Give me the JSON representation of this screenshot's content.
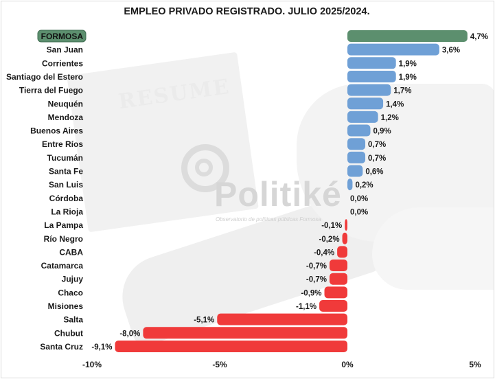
{
  "title": "EMPLEO PRIVADO REGISTRADO. JULIO 2025/2024.",
  "watermark": {
    "brand": "Politiké",
    "tagline": "Observatorio de políticas públicas Formosa",
    "background_text": "RESUME"
  },
  "colors": {
    "highlight": "#5c8f6e",
    "positive": "#6fa0d6",
    "negative": "#f03a3a",
    "highlight_label_bg": "#5c8f6e"
  },
  "chart_data": {
    "type": "bar",
    "orientation": "horizontal",
    "categories": [
      "FORMOSA",
      "San Juan",
      "Corrientes",
      "Santiago del Estero",
      "Tierra del Fuego",
      "Neuquén",
      "Mendoza",
      "Buenos Aires",
      "Entre Ríos",
      "Tucumán",
      "Santa Fe",
      "San Luis",
      "Córdoba",
      "La Rioja",
      "La Pampa",
      "Río Negro",
      "CABA",
      "Catamarca",
      "Jujuy",
      "Chaco",
      "Misiones",
      "Salta",
      "Chubut",
      "Santa Cruz"
    ],
    "values": [
      4.7,
      3.6,
      1.9,
      1.9,
      1.7,
      1.4,
      1.2,
      0.9,
      0.7,
      0.7,
      0.6,
      0.2,
      0.0,
      0.0,
      -0.1,
      -0.2,
      -0.4,
      -0.7,
      -0.7,
      -0.9,
      -1.1,
      -5.1,
      -8.0,
      -9.1
    ],
    "value_labels": [
      "4,7%",
      "3,6%",
      "1,9%",
      "1,9%",
      "1,7%",
      "1,4%",
      "1,2%",
      "0,9%",
      "0,7%",
      "0,7%",
      "0,6%",
      "0,2%",
      "0,0%",
      "0,0%",
      "-0,1%",
      "-0,2%",
      "-0,4%",
      "-0,7%",
      "-0,7%",
      "-0,9%",
      "-1,1%",
      "-5,1%",
      "-8,0%",
      "-9,1%"
    ],
    "highlight": "FORMOSA",
    "xlim": [
      -10,
      5
    ],
    "xticks": [
      -10,
      -5,
      0,
      5
    ],
    "xtick_labels": [
      "-10%",
      "-5%",
      "0%",
      "5%"
    ],
    "grid": false,
    "legend": "none"
  }
}
